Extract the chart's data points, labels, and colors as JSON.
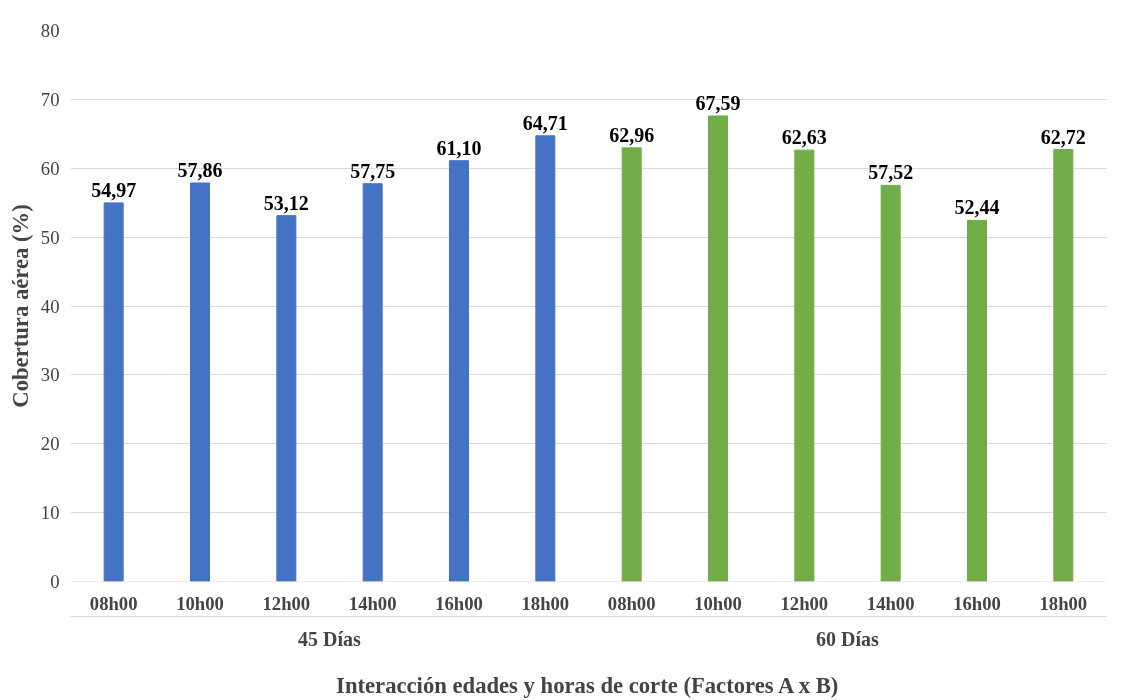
{
  "chart_data": {
    "type": "bar",
    "ylabel": "Cobertura aérea (%)",
    "xlabel": "Interacción edades y horas de corte (Factores A x B)",
    "categories": [
      "08h00",
      "10h00",
      "12h00",
      "14h00",
      "16h00",
      "18h00",
      "08h00",
      "10h00",
      "12h00",
      "14h00",
      "16h00",
      "18h00"
    ],
    "values": [
      54.97,
      57.86,
      53.12,
      57.75,
      61.1,
      64.71,
      62.96,
      67.59,
      62.63,
      57.52,
      52.44,
      62.72
    ],
    "value_labels": [
      "54,97",
      "57,86",
      "53,12",
      "57,75",
      "61,10",
      "64,71",
      "62,96",
      "67,59",
      "62,63",
      "57,52",
      "52,44",
      "62,72"
    ],
    "colors": [
      "#4472c4",
      "#4472c4",
      "#4472c4",
      "#4472c4",
      "#4472c4",
      "#4472c4",
      "#70ad47",
      "#70ad47",
      "#70ad47",
      "#70ad47",
      "#70ad47",
      "#70ad47"
    ],
    "annotations": [
      "45 Días",
      "60 Días"
    ],
    "ylim": [
      0,
      80
    ],
    "yticks": [
      0,
      10,
      20,
      30,
      40,
      50,
      60,
      70,
      80
    ],
    "grid": "y"
  }
}
